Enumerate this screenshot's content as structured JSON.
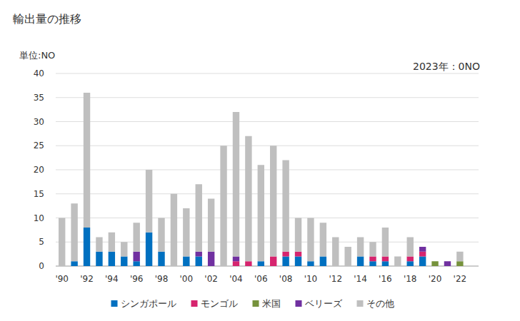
{
  "chart_data": {
    "type": "bar",
    "title": "輸出量の推移",
    "ylabel": "単位:NO",
    "annotation": "2023年：0NO",
    "categories": [
      "'90",
      null,
      "'92",
      null,
      "'94",
      null,
      "'96",
      null,
      "'98",
      null,
      "'00",
      null,
      "'02",
      null,
      "'04",
      null,
      "'06",
      null,
      "'08",
      null,
      "'10",
      null,
      "'12",
      null,
      "'14",
      null,
      "'16",
      null,
      "'18",
      null,
      "'20",
      null,
      "'22",
      null
    ],
    "series": [
      {
        "name": "シンガポール",
        "color": "#0070c0",
        "values": [
          0,
          1,
          8,
          3,
          3,
          2,
          1,
          7,
          3,
          0,
          2,
          2,
          0,
          0,
          0,
          0,
          1,
          0,
          2,
          2,
          1,
          2,
          0,
          0,
          2,
          1,
          1,
          0,
          1,
          2,
          0,
          0,
          0,
          0
        ]
      },
      {
        "name": "モンゴル",
        "color": "#d6246e",
        "values": [
          0,
          0,
          0,
          0,
          0,
          0,
          0,
          0,
          0,
          0,
          0,
          0,
          0,
          0,
          1,
          1,
          0,
          2,
          1,
          1,
          0,
          0,
          0,
          0,
          0,
          1,
          1,
          0,
          1,
          1,
          0,
          0,
          0,
          0
        ]
      },
      {
        "name": "米国",
        "color": "#76923c",
        "values": [
          0,
          0,
          0,
          0,
          0,
          0,
          0,
          0,
          0,
          0,
          0,
          0,
          0,
          0,
          0,
          0,
          0,
          0,
          0,
          0,
          0,
          0,
          0,
          0,
          0,
          0,
          0,
          0,
          0,
          0,
          1,
          0,
          1,
          0
        ]
      },
      {
        "name": "ベリーズ",
        "color": "#7030a0",
        "values": [
          0,
          0,
          0,
          0,
          0,
          0,
          2,
          0,
          0,
          0,
          0,
          1,
          3,
          0,
          1,
          0,
          0,
          0,
          0,
          0,
          0,
          0,
          0,
          0,
          0,
          0,
          0,
          0,
          0,
          1,
          0,
          1,
          0,
          0
        ]
      },
      {
        "name": "その他",
        "color": "#bfbfbf",
        "values": [
          10,
          12,
          28,
          3,
          4,
          3,
          6,
          13,
          7,
          15,
          10,
          14,
          11,
          25,
          30,
          26,
          20,
          23,
          19,
          7,
          9,
          7,
          6,
          4,
          4,
          3,
          6,
          2,
          4,
          0,
          0,
          0,
          2,
          0
        ]
      }
    ],
    "ylim": [
      0,
      40
    ],
    "yticks": [
      0,
      5,
      10,
      15,
      20,
      25,
      30,
      35,
      40
    ],
    "grid": true,
    "stacked": true,
    "legend": "bottom",
    "data_labels": false
  }
}
